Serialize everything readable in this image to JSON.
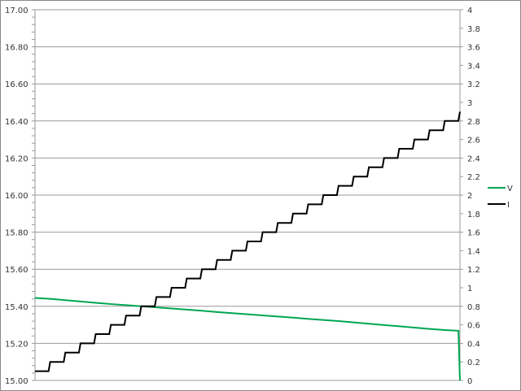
{
  "chart_data": {
    "type": "line",
    "title": "",
    "xlabel": "",
    "ylabel": "",
    "y_left": {
      "range": [
        15.0,
        17.0
      ],
      "ticks": [
        "15.00",
        "15.20",
        "15.40",
        "15.60",
        "15.80",
        "16.00",
        "16.20",
        "16.40",
        "16.60",
        "16.80",
        "17.00"
      ]
    },
    "y_right": {
      "range": [
        0,
        4
      ],
      "ticks": [
        "0",
        "0.2",
        "0.4",
        "0.6",
        "0.8",
        "1",
        "1.2",
        "1.4",
        "1.6",
        "1.8",
        "2",
        "2.2",
        "2.4",
        "2.6",
        "2.8",
        "3",
        "3.2",
        "3.4",
        "3.6",
        "3.8",
        "4"
      ]
    },
    "x_range": [
      0,
      28
    ],
    "grid": true,
    "legend_position": "right",
    "series": [
      {
        "name": "V",
        "axis": "left",
        "color": "#00a651",
        "x": [
          0,
          1,
          2,
          3,
          4,
          5,
          6,
          7,
          8,
          9,
          10,
          11,
          12,
          13,
          14,
          15,
          16,
          17,
          18,
          19,
          20,
          21,
          22,
          23,
          24,
          25,
          26,
          27,
          27.9,
          28
        ],
        "y": [
          15.445,
          15.44,
          15.433,
          15.426,
          15.419,
          15.412,
          15.406,
          15.4,
          15.394,
          15.388,
          15.382,
          15.376,
          15.369,
          15.363,
          15.357,
          15.351,
          15.345,
          15.339,
          15.332,
          15.326,
          15.32,
          15.313,
          15.306,
          15.299,
          15.292,
          15.285,
          15.278,
          15.272,
          15.268,
          15.0
        ]
      },
      {
        "name": "I",
        "axis": "right",
        "color": "#000000",
        "style": "step",
        "x": [
          0,
          1,
          2,
          3,
          4,
          5,
          6,
          7,
          8,
          9,
          10,
          11,
          12,
          13,
          14,
          15,
          16,
          17,
          18,
          19,
          20,
          21,
          22,
          23,
          24,
          25,
          26,
          27,
          28
        ],
        "y": [
          0.1,
          0.2,
          0.3,
          0.4,
          0.5,
          0.6,
          0.7,
          0.8,
          0.9,
          1.0,
          1.1,
          1.2,
          1.3,
          1.4,
          1.5,
          1.6,
          1.7,
          1.8,
          1.9,
          2.0,
          2.1,
          2.2,
          2.3,
          2.4,
          2.5,
          2.6,
          2.7,
          2.8,
          2.9
        ]
      }
    ]
  }
}
